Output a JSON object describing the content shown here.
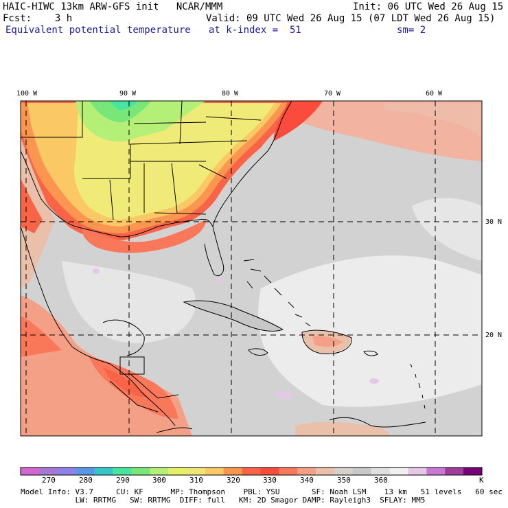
{
  "header": {
    "title": "HAIC-HIWC 13km ARW-GFS init   NCAR/MMM",
    "init": "Init: 06 UTC Wed 26 Aug 15",
    "fcst": "Fcst:    3 h",
    "valid": "Valid: 09 UTC Wed 26 Aug 15 (07 LDT Wed 26 Aug 15)",
    "field": "Equivalent potential temperature",
    "level": "at k-index =  51",
    "smooth": "sm= 2"
  },
  "map": {
    "lon_labels": [
      "100 W",
      "90 W",
      "80 W",
      "70 W",
      "60 W"
    ],
    "lat_labels": [
      "30 N",
      "20 N"
    ]
  },
  "colorbar": {
    "colors": [
      "#d466d4",
      "#a678d4",
      "#8c82e6",
      "#5a96e6",
      "#32c8c8",
      "#46e6a0",
      "#78e678",
      "#b4f078",
      "#e6f064",
      "#f0e678",
      "#fac864",
      "#fa9650",
      "#fa6446",
      "#fa4b3c",
      "#fa785a",
      "#f4a086",
      "#eac0aa",
      "#d8d0cc",
      "#c8c8c8",
      "#e0e0e0",
      "#f0f0f0",
      "#e6c8e6",
      "#c878d2",
      "#a03c9a",
      "#780078"
    ],
    "ticks": [
      "270",
      "280",
      "290",
      "300",
      "310",
      "320",
      "330",
      "340",
      "350",
      "360",
      "K"
    ]
  },
  "footer": {
    "line1": "Model Info: V3.7     CU: KF      MP: Thompson    PBL: YSU       SF: Noah LSM    13 km   51 levels   60 sec",
    "line2": "            LW: RRTMG   SW: RRTMG  DIFF: full   KM: 2D Smagor DAMP: Rayleigh3  SFLAY: MM5"
  }
}
